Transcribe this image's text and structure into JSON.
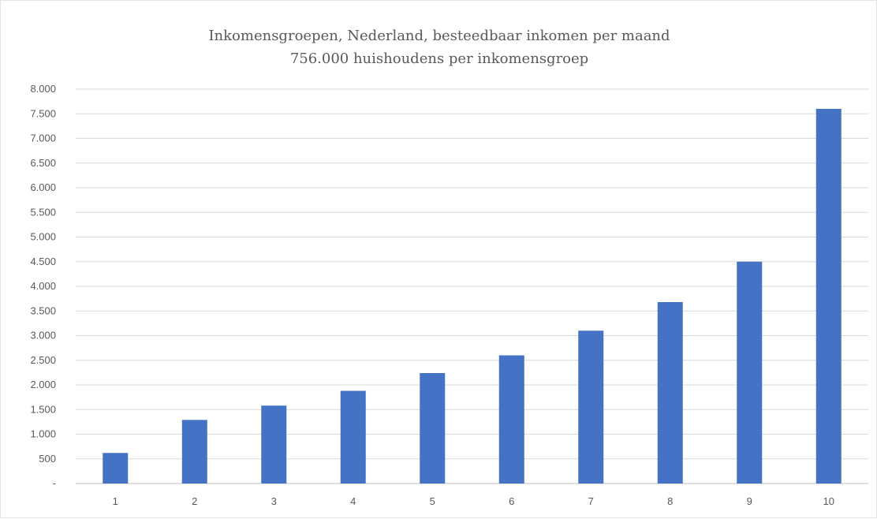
{
  "chart_data": {
    "type": "bar",
    "title": "Inkomensgroepen, Nederland, besteedbaar inkomen per maand",
    "subtitle": "756.000 huishoudens per inkomensgroep",
    "xlabel": "",
    "ylabel": "",
    "categories": [
      "1",
      "2",
      "3",
      "4",
      "5",
      "6",
      "7",
      "8",
      "9",
      "10"
    ],
    "values": [
      620,
      1290,
      1580,
      1880,
      2240,
      2600,
      3100,
      3680,
      4500,
      7600
    ],
    "ylim": [
      0,
      8000
    ],
    "yticks": [
      0,
      500,
      1000,
      1500,
      2000,
      2500,
      3000,
      3500,
      4000,
      4500,
      5000,
      5500,
      6000,
      6500,
      7000,
      7500,
      8000
    ],
    "ytick_labels": [
      "-",
      "500",
      "1.000",
      "1.500",
      "2.000",
      "2.500",
      "3.000",
      "3.500",
      "4.000",
      "4.500",
      "5.000",
      "5.500",
      "6.000",
      "6.500",
      "7.000",
      "7.500",
      "8.000"
    ],
    "grid": true,
    "legend": "none",
    "bar_color": "#4472c4"
  }
}
